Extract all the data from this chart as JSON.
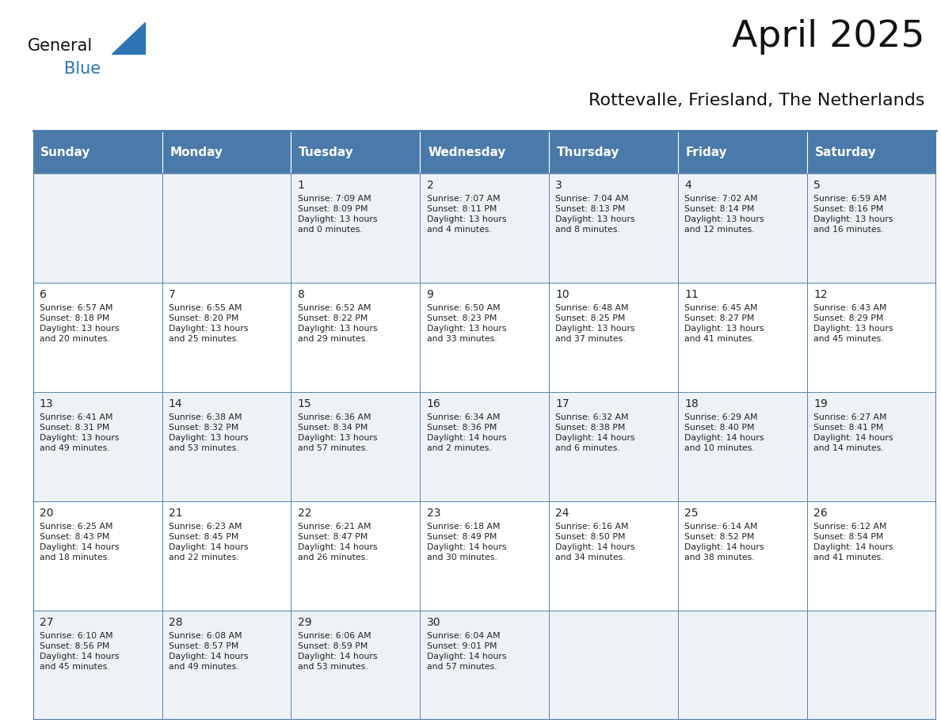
{
  "title": "April 2025",
  "subtitle": "Rottevalle, Friesland, The Netherlands",
  "header_color": "#4a7aaa",
  "header_text_color": "#ffffff",
  "cell_bg_color_odd": "#eef2f7",
  "cell_bg_color_even": "#ffffff",
  "border_color": "#4a7aaa",
  "text_color": "#222222",
  "days_of_week": [
    "Sunday",
    "Monday",
    "Tuesday",
    "Wednesday",
    "Thursday",
    "Friday",
    "Saturday"
  ],
  "weeks": [
    [
      {
        "day": "",
        "info": ""
      },
      {
        "day": "",
        "info": ""
      },
      {
        "day": "1",
        "info": "Sunrise: 7:09 AM\nSunset: 8:09 PM\nDaylight: 13 hours\nand 0 minutes."
      },
      {
        "day": "2",
        "info": "Sunrise: 7:07 AM\nSunset: 8:11 PM\nDaylight: 13 hours\nand 4 minutes."
      },
      {
        "day": "3",
        "info": "Sunrise: 7:04 AM\nSunset: 8:13 PM\nDaylight: 13 hours\nand 8 minutes."
      },
      {
        "day": "4",
        "info": "Sunrise: 7:02 AM\nSunset: 8:14 PM\nDaylight: 13 hours\nand 12 minutes."
      },
      {
        "day": "5",
        "info": "Sunrise: 6:59 AM\nSunset: 8:16 PM\nDaylight: 13 hours\nand 16 minutes."
      }
    ],
    [
      {
        "day": "6",
        "info": "Sunrise: 6:57 AM\nSunset: 8:18 PM\nDaylight: 13 hours\nand 20 minutes."
      },
      {
        "day": "7",
        "info": "Sunrise: 6:55 AM\nSunset: 8:20 PM\nDaylight: 13 hours\nand 25 minutes."
      },
      {
        "day": "8",
        "info": "Sunrise: 6:52 AM\nSunset: 8:22 PM\nDaylight: 13 hours\nand 29 minutes."
      },
      {
        "day": "9",
        "info": "Sunrise: 6:50 AM\nSunset: 8:23 PM\nDaylight: 13 hours\nand 33 minutes."
      },
      {
        "day": "10",
        "info": "Sunrise: 6:48 AM\nSunset: 8:25 PM\nDaylight: 13 hours\nand 37 minutes."
      },
      {
        "day": "11",
        "info": "Sunrise: 6:45 AM\nSunset: 8:27 PM\nDaylight: 13 hours\nand 41 minutes."
      },
      {
        "day": "12",
        "info": "Sunrise: 6:43 AM\nSunset: 8:29 PM\nDaylight: 13 hours\nand 45 minutes."
      }
    ],
    [
      {
        "day": "13",
        "info": "Sunrise: 6:41 AM\nSunset: 8:31 PM\nDaylight: 13 hours\nand 49 minutes."
      },
      {
        "day": "14",
        "info": "Sunrise: 6:38 AM\nSunset: 8:32 PM\nDaylight: 13 hours\nand 53 minutes."
      },
      {
        "day": "15",
        "info": "Sunrise: 6:36 AM\nSunset: 8:34 PM\nDaylight: 13 hours\nand 57 minutes."
      },
      {
        "day": "16",
        "info": "Sunrise: 6:34 AM\nSunset: 8:36 PM\nDaylight: 14 hours\nand 2 minutes."
      },
      {
        "day": "17",
        "info": "Sunrise: 6:32 AM\nSunset: 8:38 PM\nDaylight: 14 hours\nand 6 minutes."
      },
      {
        "day": "18",
        "info": "Sunrise: 6:29 AM\nSunset: 8:40 PM\nDaylight: 14 hours\nand 10 minutes."
      },
      {
        "day": "19",
        "info": "Sunrise: 6:27 AM\nSunset: 8:41 PM\nDaylight: 14 hours\nand 14 minutes."
      }
    ],
    [
      {
        "day": "20",
        "info": "Sunrise: 6:25 AM\nSunset: 8:43 PM\nDaylight: 14 hours\nand 18 minutes."
      },
      {
        "day": "21",
        "info": "Sunrise: 6:23 AM\nSunset: 8:45 PM\nDaylight: 14 hours\nand 22 minutes."
      },
      {
        "day": "22",
        "info": "Sunrise: 6:21 AM\nSunset: 8:47 PM\nDaylight: 14 hours\nand 26 minutes."
      },
      {
        "day": "23",
        "info": "Sunrise: 6:18 AM\nSunset: 8:49 PM\nDaylight: 14 hours\nand 30 minutes."
      },
      {
        "day": "24",
        "info": "Sunrise: 6:16 AM\nSunset: 8:50 PM\nDaylight: 14 hours\nand 34 minutes."
      },
      {
        "day": "25",
        "info": "Sunrise: 6:14 AM\nSunset: 8:52 PM\nDaylight: 14 hours\nand 38 minutes."
      },
      {
        "day": "26",
        "info": "Sunrise: 6:12 AM\nSunset: 8:54 PM\nDaylight: 14 hours\nand 41 minutes."
      }
    ],
    [
      {
        "day": "27",
        "info": "Sunrise: 6:10 AM\nSunset: 8:56 PM\nDaylight: 14 hours\nand 45 minutes."
      },
      {
        "day": "28",
        "info": "Sunrise: 6:08 AM\nSunset: 8:57 PM\nDaylight: 14 hours\nand 49 minutes."
      },
      {
        "day": "29",
        "info": "Sunrise: 6:06 AM\nSunset: 8:59 PM\nDaylight: 14 hours\nand 53 minutes."
      },
      {
        "day": "30",
        "info": "Sunrise: 6:04 AM\nSunset: 9:01 PM\nDaylight: 14 hours\nand 57 minutes."
      },
      {
        "day": "",
        "info": ""
      },
      {
        "day": "",
        "info": ""
      },
      {
        "day": "",
        "info": ""
      }
    ]
  ],
  "logo_text_general": "General",
  "logo_text_blue": "Blue",
  "logo_triangle_color": "#2e75b6",
  "title_fontsize": 34,
  "subtitle_fontsize": 16,
  "day_number_fontsize": 10,
  "cell_text_fontsize": 7.8,
  "header_fontsize": 11
}
